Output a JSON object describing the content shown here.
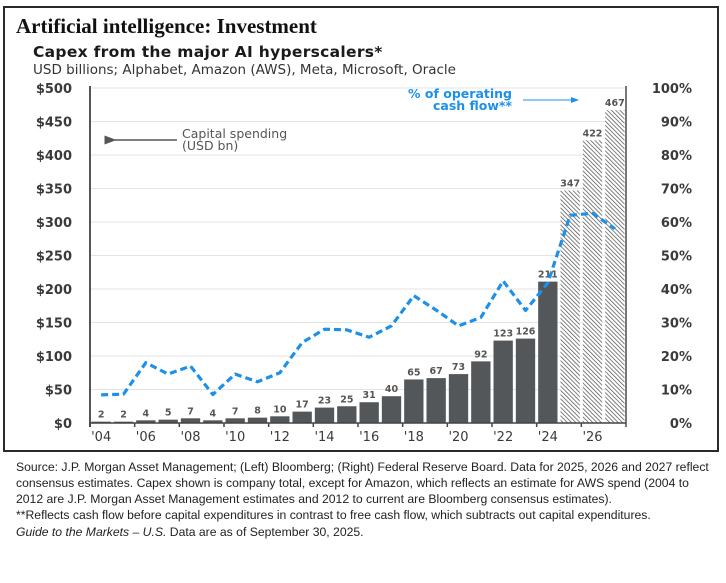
{
  "page": {
    "title": "Artificial intelligence: Investment"
  },
  "chart_data": {
    "type": "bar",
    "title": "Capex from the major AI hyperscalers*",
    "subtitle": "USD billions; Alphabet, Amazon (AWS), Meta, Microsoft, Oracle",
    "categories": [
      "2004",
      "2005",
      "2006",
      "2007",
      "2008",
      "2009",
      "2010",
      "2011",
      "2012",
      "2013",
      "2014",
      "2015",
      "2016",
      "2017",
      "2018",
      "2019",
      "2020",
      "2021",
      "2022",
      "2023",
      "2024",
      "2025",
      "2026",
      "2027"
    ],
    "x_tick_labels": [
      "'04",
      "'06",
      "'08",
      "'10",
      "'12",
      "'14",
      "'16",
      "'18",
      "'20",
      "'22",
      "'24",
      "'26"
    ],
    "series": [
      {
        "name": "Capital spending (USD bn)",
        "type": "bar",
        "axis": "left",
        "color": "#54575a",
        "values": [
          2,
          2,
          4,
          5,
          7,
          4,
          7,
          8,
          10,
          17,
          23,
          25,
          31,
          40,
          65,
          67,
          73,
          92,
          123,
          126,
          211,
          347,
          422,
          467
        ],
        "estimate_from": "2025",
        "estimate_style": "hatched"
      },
      {
        "name": "% of operating cash flow**",
        "type": "line",
        "axis": "right",
        "color": "#1e90e8",
        "style": "dashed",
        "unit": "%",
        "values": [
          8.4,
          8.6,
          18,
          14.6,
          17,
          8.5,
          14.6,
          12.3,
          15,
          24,
          28,
          27.8,
          25.6,
          29,
          38,
          33.7,
          29,
          31.5,
          42.4,
          33.6,
          41.8,
          62,
          62.6,
          58
        ]
      }
    ],
    "y_left": {
      "label": "USD billions",
      "ylim": [
        0,
        500
      ],
      "tick_labels": [
        "$0",
        "$50",
        "$100",
        "$150",
        "$200",
        "$250",
        "$300",
        "$350",
        "$400",
        "$450",
        "$500"
      ]
    },
    "y_right": {
      "label": "% of operating cash flow",
      "ylim": [
        0,
        100
      ],
      "tick_labels": [
        "0%",
        "10%",
        "20%",
        "30%",
        "40%",
        "50%",
        "60%",
        "70%",
        "80%",
        "90%",
        "100%"
      ]
    },
    "annotations": {
      "left_series_label_line1": "Capital spending",
      "left_series_label_line2": "(USD bn)",
      "right_series_label_line1": "% of operating",
      "right_series_label_line2": "cash flow**"
    },
    "grid": true,
    "legend": "inline annotations (top-left and top-right)"
  },
  "footnotes": {
    "source": "Source: J.P. Morgan Asset Management; (Left) Bloomberg; (Right) Federal Reserve Board.  Data for 2025, 2026 and 2027 reflect consensus estimates. Capex shown is company total, except for Amazon, which reflects an estimate for AWS spend (2004 to 2012 are J.P. Morgan Asset Management estimates and 2012 to current are Bloomberg consensus estimates).",
    "double_asterisk": "**Reflects cash flow before capital expenditures in contrast to free cash flow, which subtracts out capital expenditures.",
    "guide_italic": "Guide to the Markets – U.S.",
    "data_as_of": " Data are as of September 30, 2025."
  }
}
